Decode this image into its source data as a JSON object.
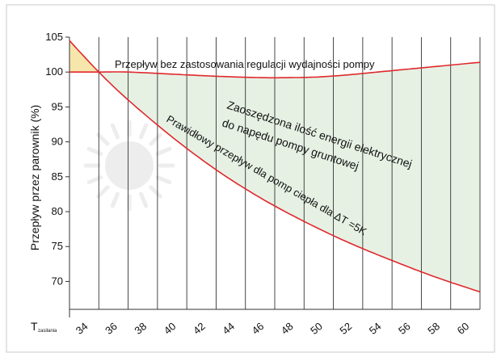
{
  "chart_data": {
    "type": "line",
    "ylabel": "Przepływ przez parownik (%)",
    "xlabel_main": "T",
    "xlabel_sub": "zasilania",
    "xlim": [
      33,
      61
    ],
    "ylim": [
      66,
      105
    ],
    "x_ticks": [
      34,
      36,
      38,
      40,
      42,
      44,
      46,
      48,
      50,
      52,
      54,
      56,
      58,
      60
    ],
    "y_ticks": [
      70,
      75,
      80,
      85,
      90,
      95,
      100,
      105
    ],
    "grid": "vertical lines at every 2 degrees",
    "series": [
      {
        "name": "Przepływ bez zastosowania regulacji wydajności pompy",
        "x": [
          33,
          35,
          37,
          40,
          43,
          46,
          48,
          50,
          52,
          54,
          56,
          58,
          61
        ],
        "values": [
          100.0,
          100.0,
          100.0,
          99.7,
          99.4,
          99.2,
          99.2,
          99.3,
          99.6,
          100.0,
          100.4,
          100.8,
          101.4
        ]
      },
      {
        "name": "Prawidłowy przepływ dla pomp ciepła dla ΔT =5K",
        "x": [
          33,
          35,
          37,
          40,
          43,
          46,
          49,
          52,
          55,
          58,
          61
        ],
        "values": [
          104.5,
          100.0,
          96.0,
          90.7,
          86.0,
          82.0,
          78.6,
          75.6,
          73.0,
          70.6,
          68.5
        ]
      }
    ],
    "annotations": {
      "top_curve_label": "Przepływ bez zastosowania regulacji wydajności pompy",
      "bottom_curve_label": "Prawidłowy przepływ dla pomp ciepła dla ΔT =5K",
      "savings_label_line1": "Zaoszędzona ilość energii elektrycznej",
      "savings_label_line2": "do napędu pompy gruntowej"
    },
    "colors": {
      "curve": "#e0282c",
      "savings_fill": "#e6f1e4",
      "excess_fill": "#f6e6ab",
      "grid": "#333333",
      "watermark": "#ececec"
    }
  }
}
